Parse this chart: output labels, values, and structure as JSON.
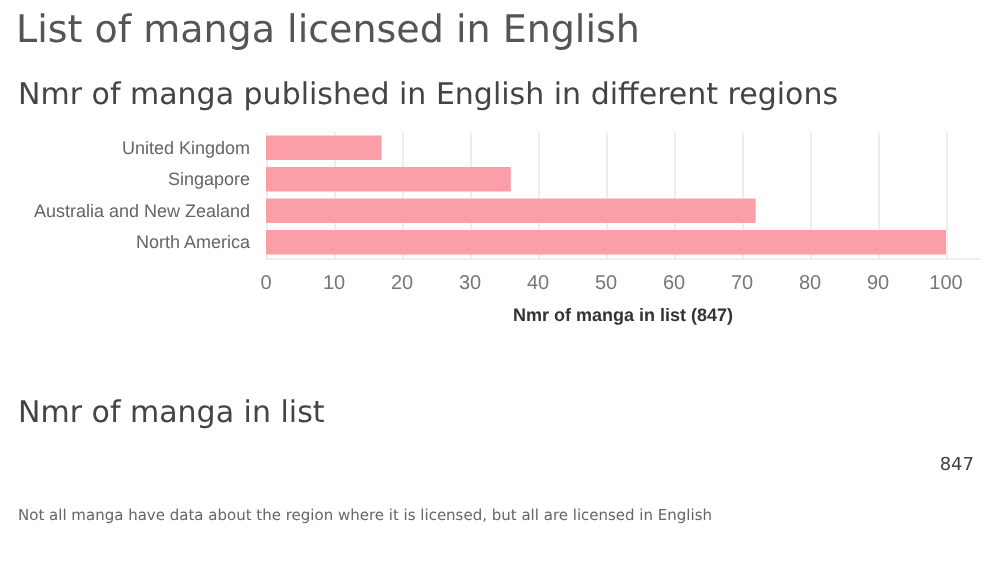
{
  "chart_data": [
    {
      "type": "bar",
      "title": "List of manga licensed in English",
      "subtitle": "Nmr of manga published in English in different regions",
      "orientation": "horizontal",
      "categories": [
        "United Kingdom",
        "Singapore",
        "Australia and New Zealand",
        "North America"
      ],
      "values": [
        17,
        36,
        72,
        100
      ],
      "color": "#fb9ea8",
      "xlabel": "Nmr of manga in list (847)",
      "xlim": [
        0,
        105
      ],
      "xticks": [
        0,
        10,
        20,
        30,
        40,
        50,
        60,
        70,
        80,
        90,
        100
      ],
      "grid": "x"
    },
    {
      "type": "other",
      "title": "Nmr of manga in list",
      "values": [
        847
      ],
      "data_labels": true,
      "annotations": [
        "Not all manga have data about the region where it is licensed, but all are licensed in English"
      ]
    }
  ]
}
